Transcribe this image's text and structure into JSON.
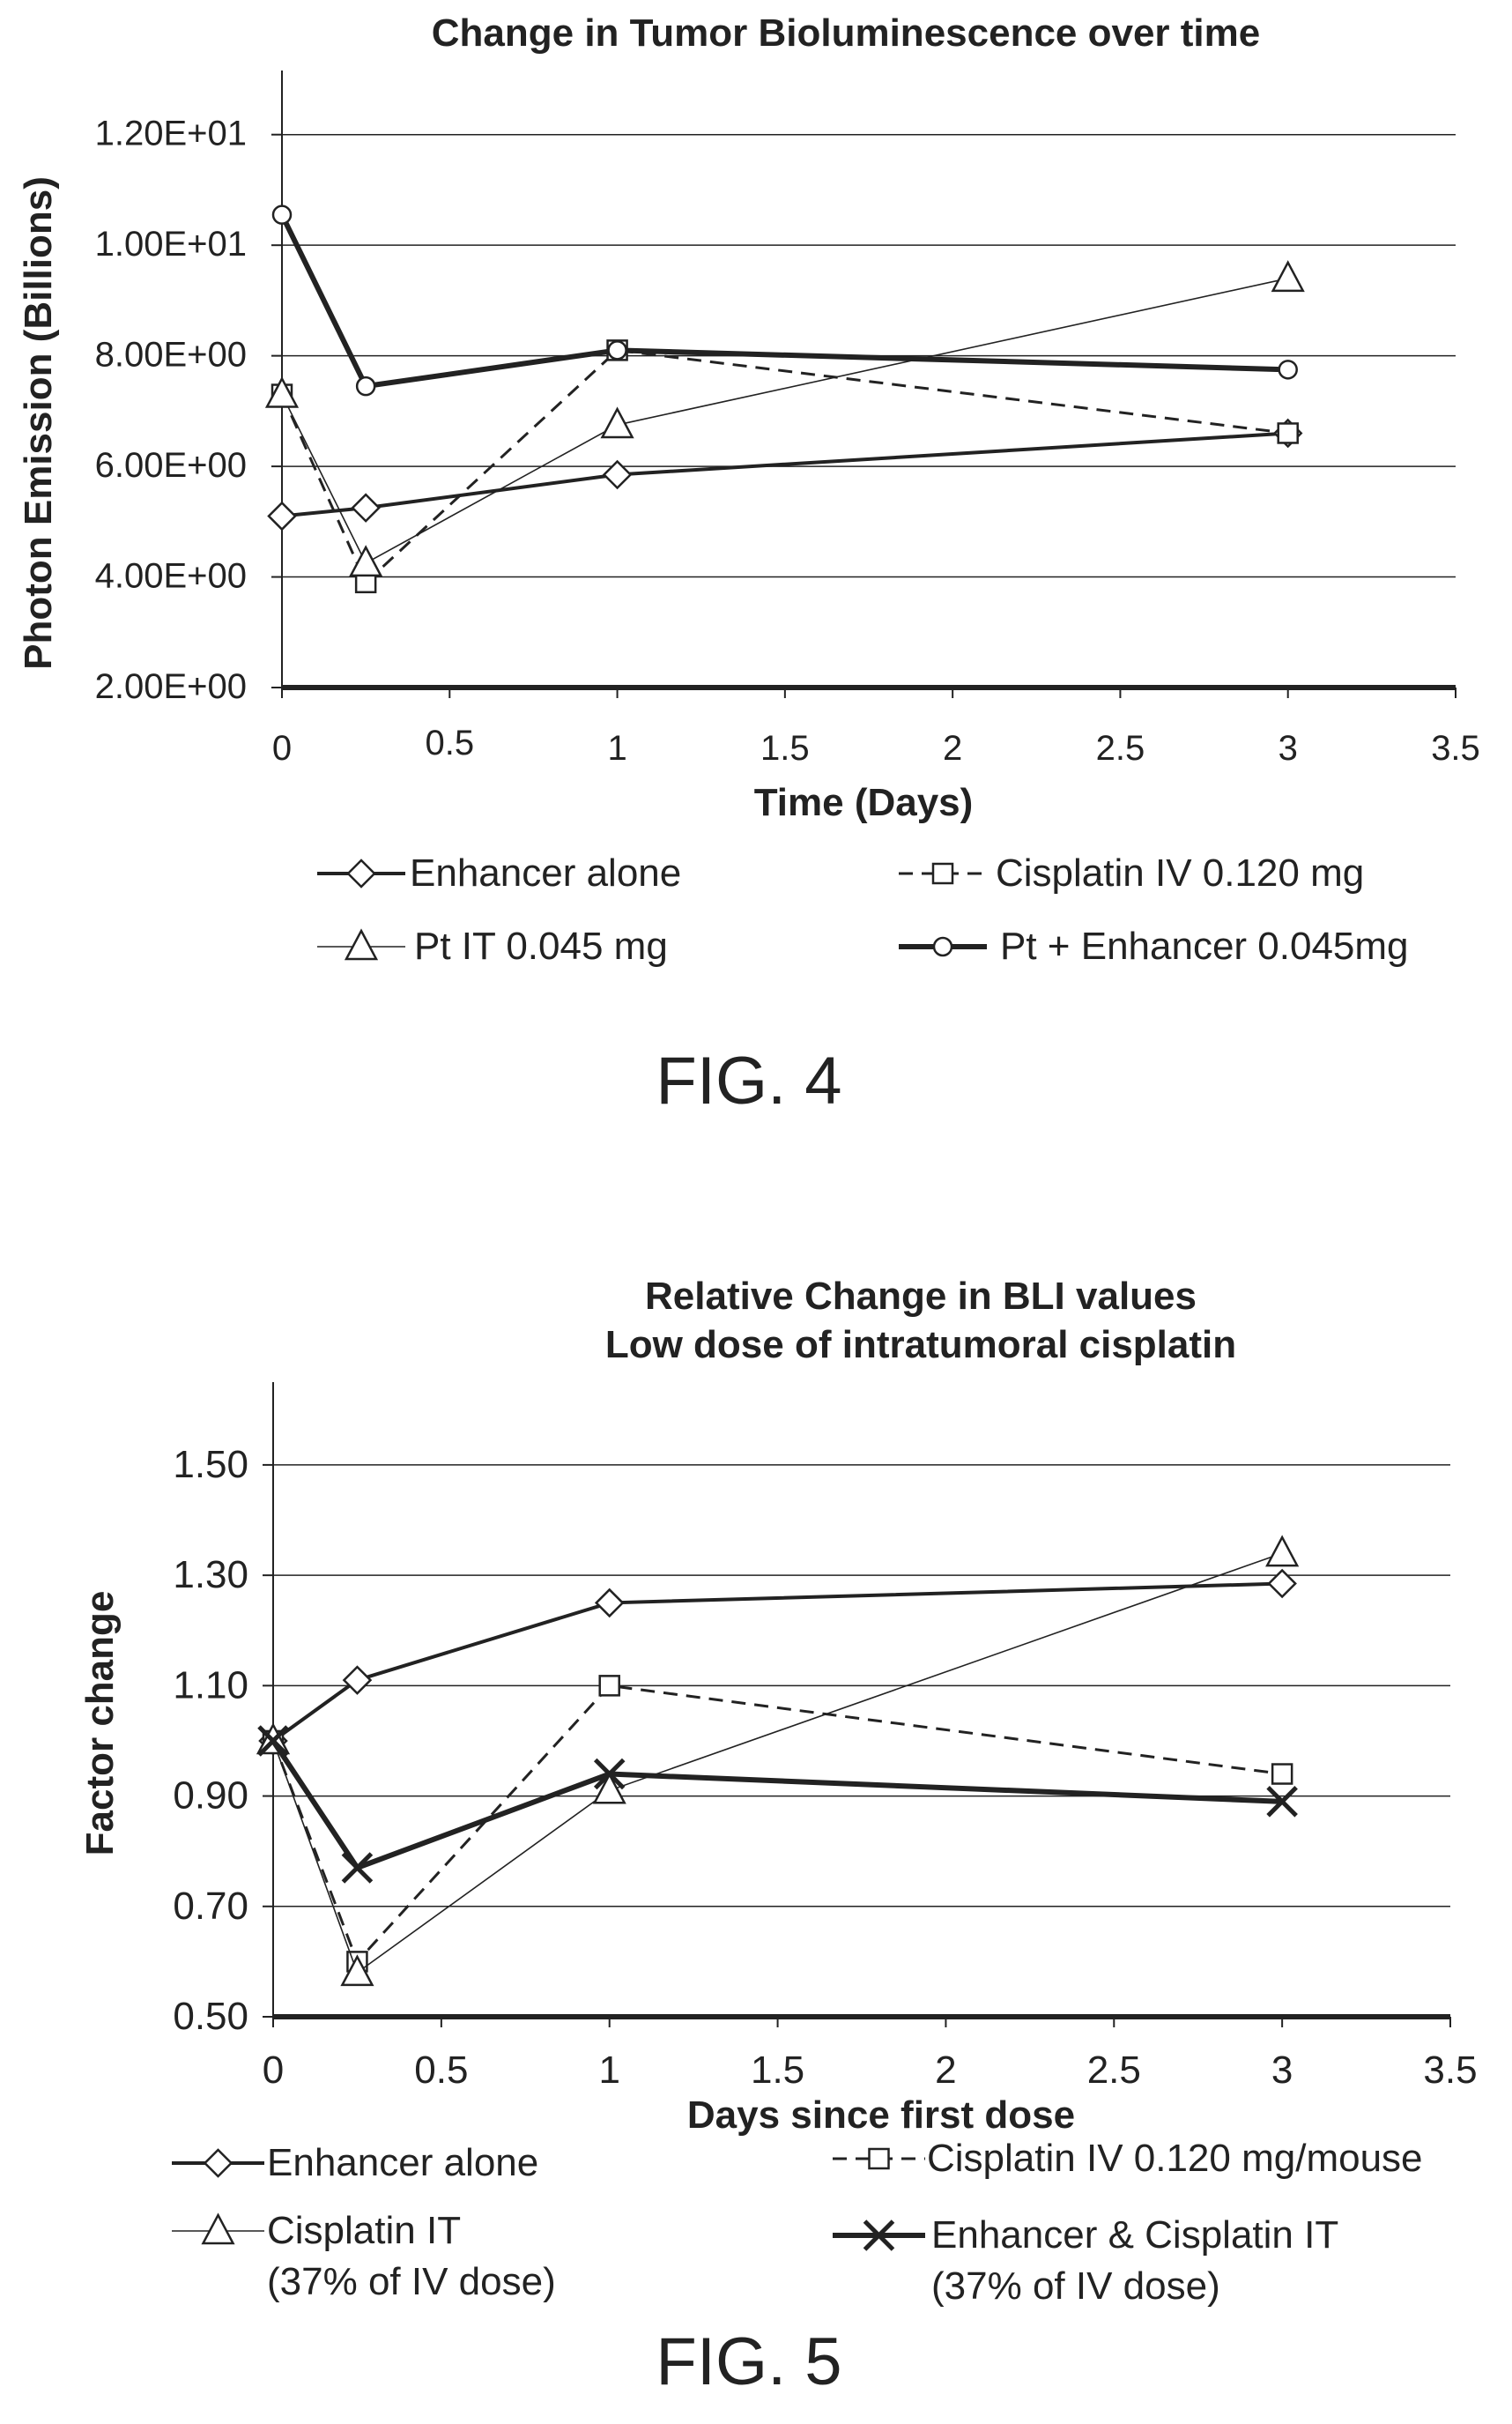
{
  "figures": [
    {
      "fig_label": "FIG. 4",
      "legend": [
        {
          "series": 0,
          "lines": [
            "Enhancer alone"
          ]
        },
        {
          "series": 1,
          "lines": [
            "Cisplatin IV 0.120 mg"
          ]
        },
        {
          "series": 2,
          "lines": [
            "Pt IT 0.045 mg"
          ]
        },
        {
          "series": 3,
          "lines": [
            "Pt + Enhancer 0.045mg"
          ]
        }
      ]
    },
    {
      "fig_label": "FIG. 5",
      "legend": [
        {
          "series": 0,
          "lines": [
            "Enhancer alone"
          ]
        },
        {
          "series": 1,
          "lines": [
            "Cisplatin IV 0.120 mg/mouse"
          ]
        },
        {
          "series": 2,
          "lines": [
            "Cisplatin IT",
            "(37% of IV dose)"
          ]
        },
        {
          "series": 3,
          "lines": [
            "Enhancer & Cisplatin IT",
            "(37% of IV dose)"
          ]
        }
      ]
    }
  ],
  "chart_data": [
    {
      "type": "line",
      "title": [
        "Change in Tumor Bioluminescence over time"
      ],
      "xlabel": "Time (Days)",
      "ylabel": "Photon Emission (Billions)",
      "xlim": [
        0,
        3.5
      ],
      "ylim": [
        2,
        13
      ],
      "x_ticks": [
        "0",
        "0.5",
        "1",
        "1.5",
        "2",
        "2.5",
        "3",
        "3.5"
      ],
      "y_ticks": [
        "2.00E+00",
        "4.00E+00",
        "6.00E+00",
        "8.00E+00",
        "1.00E+01",
        "1.20E+01"
      ],
      "grid": "horizontal",
      "legend_position": "bottom",
      "series": [
        {
          "name": "Enhancer alone",
          "marker": "diamond",
          "line": "solid-medium",
          "x": [
            0,
            0.25,
            1,
            3
          ],
          "y": [
            5.1,
            5.25,
            5.85,
            6.6
          ]
        },
        {
          "name": "Cisplatin IV 0.120 mg",
          "marker": "square",
          "line": "dashed",
          "x": [
            0,
            0.25,
            1,
            3
          ],
          "y": [
            7.3,
            3.9,
            8.1,
            6.6
          ]
        },
        {
          "name": "Pt IT 0.045 mg",
          "marker": "triangle",
          "line": "thin",
          "x": [
            0,
            0.25,
            1,
            3
          ],
          "y": [
            7.3,
            4.25,
            6.75,
            9.4
          ]
        },
        {
          "name": "Pt + Enhancer 0.045mg",
          "marker": "circle",
          "line": "thick",
          "x": [
            0,
            0.25,
            1,
            3
          ],
          "y": [
            10.55,
            7.45,
            8.1,
            7.75
          ]
        }
      ]
    },
    {
      "type": "line",
      "title": [
        "Relative Change in BLI values",
        "Low dose of intratumoral cisplatin"
      ],
      "xlabel": "Days since first dose",
      "ylabel": "Factor change",
      "xlim": [
        0,
        3.5
      ],
      "ylim": [
        0.5,
        1.65
      ],
      "x_ticks": [
        "0",
        "0.5",
        "1",
        "1.5",
        "2",
        "2.5",
        "3",
        "3.5"
      ],
      "y_ticks": [
        "0.50",
        "0.70",
        "0.90",
        "1.10",
        "1.30",
        "1.50"
      ],
      "grid": "horizontal",
      "legend_position": "bottom",
      "series": [
        {
          "name": "Enhancer alone",
          "marker": "diamond",
          "line": "solid-medium",
          "x": [
            0,
            0.25,
            1,
            3
          ],
          "y": [
            1.0,
            1.11,
            1.25,
            1.285
          ]
        },
        {
          "name": "Cisplatin IV 0.120 mg/mouse",
          "marker": "square",
          "line": "dashed",
          "x": [
            0,
            0.25,
            1,
            3
          ],
          "y": [
            1.0,
            0.6,
            1.1,
            0.94
          ]
        },
        {
          "name": "Cisplatin IT (37% of IV dose)",
          "marker": "triangle",
          "line": "thin",
          "x": [
            0,
            0.25,
            1,
            3
          ],
          "y": [
            1.0,
            0.58,
            0.91,
            1.34
          ]
        },
        {
          "name": "Enhancer & Cisplatin IT (37% of IV dose)",
          "marker": "x",
          "line": "thick",
          "x": [
            0,
            0.25,
            1,
            3
          ],
          "y": [
            1.0,
            0.77,
            0.94,
            0.89
          ]
        }
      ]
    }
  ]
}
